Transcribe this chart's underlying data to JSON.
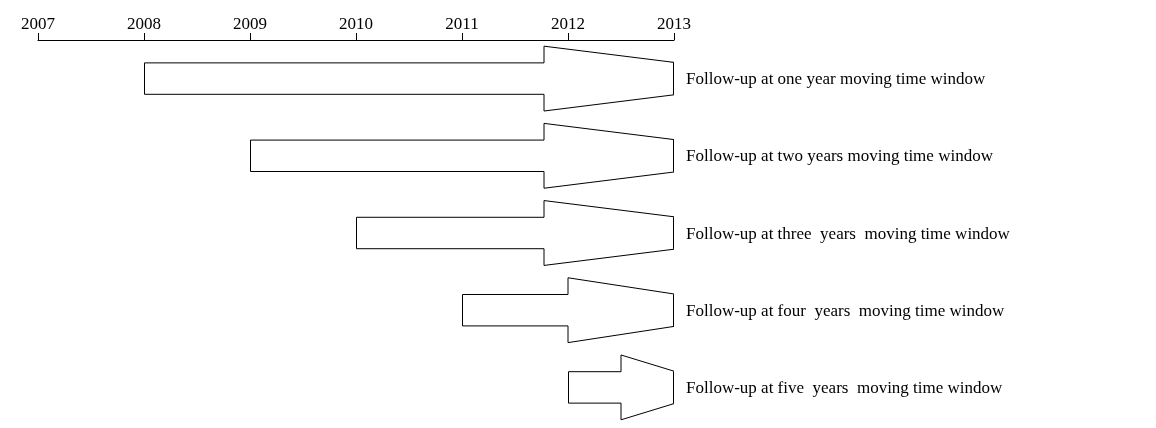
{
  "chart_data": {
    "type": "bar",
    "orientation": "horizontal",
    "categories": [
      "Follow-up at one year moving time window",
      "Follow-up at two years moving time window",
      "Follow-up at three  years  moving time window",
      "Follow-up at four  years  moving time window",
      "Follow-up at five  years  moving time window"
    ],
    "base": [
      2008,
      2009,
      2010,
      2011,
      2012
    ],
    "values": [
      5,
      4,
      3,
      2,
      1
    ],
    "color": "#ffffff",
    "xlim": [
      2007,
      2013
    ],
    "xticks": [
      2007,
      2008,
      2009,
      2010,
      2011,
      2012,
      2013
    ]
  }
}
